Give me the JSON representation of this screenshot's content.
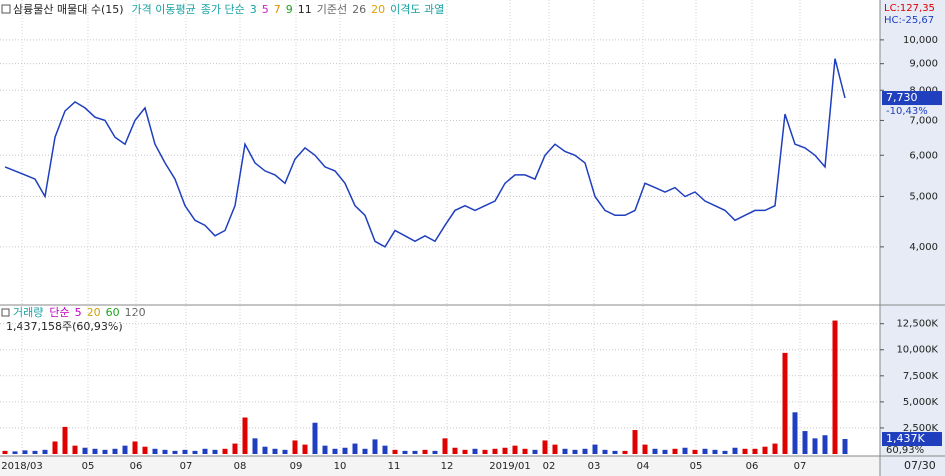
{
  "chart_data": [
    {
      "type": "line",
      "title": "삼륭물산 매물대 수(15)",
      "legend": [
        {
          "text": "가격 이동평균",
          "color": "#17a2a2"
        },
        {
          "text": "종가 단순",
          "color": "#17a2a2"
        },
        {
          "text": "3",
          "color": "#17a2a2"
        },
        {
          "text": "5",
          "color": "#d020d0"
        },
        {
          "text": "7",
          "color": "#e09000"
        },
        {
          "text": "9",
          "color": "#20a020"
        },
        {
          "text": "11",
          "color": "#222222"
        },
        {
          "text": "기준선",
          "color": "#666666"
        },
        {
          "text": "26",
          "color": "#666666"
        },
        {
          "text": "20",
          "color": "#e0a000"
        },
        {
          "text": "이격도 과열",
          "color": "#17a2a2"
        }
      ],
      "annotations": {
        "lc": "LC:127,35",
        "hc": "HC:-25,67",
        "change": "-10,43%"
      },
      "current": {
        "value": 7730,
        "label": "7,730"
      },
      "log_scale": true,
      "grid": true,
      "color": "#1f3fbf",
      "x": [
        0,
        1,
        2,
        3,
        4,
        5,
        6,
        7,
        8,
        9,
        10,
        11,
        12,
        13,
        14,
        15,
        16,
        17,
        18,
        19,
        20,
        21,
        22,
        23,
        24,
        25,
        26,
        27,
        28,
        29,
        30,
        31,
        32,
        33,
        34,
        35,
        36,
        37,
        38,
        39,
        40,
        41,
        42,
        43,
        44,
        45,
        46,
        47,
        48,
        49,
        50,
        51,
        52,
        53,
        54,
        55,
        56,
        57,
        58,
        59,
        60,
        61,
        62,
        63,
        64,
        65,
        66,
        67,
        68,
        69,
        70,
        71,
        72,
        73,
        74,
        75,
        76,
        77,
        78,
        79,
        80,
        81,
        82,
        83,
        84
      ],
      "values": [
        5700,
        5600,
        5500,
        5400,
        5000,
        6500,
        7300,
        7600,
        7400,
        7100,
        7000,
        6500,
        6300,
        7000,
        7400,
        6300,
        5800,
        5400,
        4800,
        4500,
        4400,
        4200,
        4300,
        4800,
        6300,
        5800,
        5600,
        5500,
        5300,
        5900,
        6200,
        6000,
        5700,
        5600,
        5300,
        4800,
        4600,
        4100,
        4000,
        4300,
        4200,
        4100,
        4200,
        4100,
        4400,
        4700,
        4800,
        4700,
        4800,
        4900,
        5300,
        5500,
        5500,
        5400,
        6000,
        6300,
        6100,
        6000,
        5800,
        5000,
        4700,
        4600,
        4600,
        4700,
        5300,
        5200,
        5100,
        5200,
        5000,
        5100,
        4900,
        4800,
        4700,
        4500,
        4600,
        4700,
        4700,
        4800,
        7200,
        6300,
        6200,
        6000,
        5700,
        9200,
        7730
      ],
      "xlim": [
        -0.5,
        87.5
      ],
      "ylim": [
        3120,
        11930
      ],
      "yticks": [
        {
          "value": 4000,
          "label": "4,000"
        },
        {
          "value": 5000,
          "label": "5,000"
        },
        {
          "value": 6000,
          "label": "6,000"
        },
        {
          "value": 7000,
          "label": "7,000"
        },
        {
          "value": 8000,
          "label": "8,000"
        },
        {
          "value": 9000,
          "label": "9,000"
        },
        {
          "value": 10000,
          "label": "10,000"
        }
      ]
    },
    {
      "type": "bar",
      "title": "거래량",
      "legend": [
        {
          "text": "단순",
          "color": "#c000c0"
        },
        {
          "text": "5",
          "color": "#c000c0"
        },
        {
          "text": "20",
          "color": "#d0a000"
        },
        {
          "text": "60",
          "color": "#20a020"
        },
        {
          "text": "120",
          "color": "#666666"
        }
      ],
      "shares": "1,437,158주(60,93%)",
      "ratio": "60,93%",
      "end_date": "07/30",
      "current": {
        "value": 1437,
        "label": "1,437K"
      },
      "grid": true,
      "up_color": "#e00000",
      "down_color": "#1f3fbf",
      "values": [
        300,
        250,
        350,
        300,
        400,
        1200,
        2600,
        800,
        600,
        500,
        400,
        500,
        800,
        1200,
        700,
        500,
        400,
        300,
        400,
        300,
        500,
        400,
        500,
        1000,
        3500,
        1500,
        700,
        500,
        400,
        1300,
        900,
        3000,
        800,
        500,
        600,
        1000,
        500,
        1400,
        800,
        400,
        300,
        300,
        400,
        300,
        1500,
        600,
        400,
        500,
        400,
        500,
        600,
        800,
        500,
        400,
        1300,
        900,
        500,
        400,
        500,
        900,
        400,
        300,
        300,
        2300,
        900,
        500,
        400,
        500,
        600,
        400,
        500,
        400,
        300,
        600,
        500,
        500,
        700,
        1000,
        9700,
        4000,
        2200,
        1500,
        1800,
        12800,
        1437
      ],
      "xlim": [
        -0.5,
        87.5
      ],
      "xticks": [
        {
          "value": 1.7,
          "label": "2018/03"
        },
        {
          "value": 8.3,
          "label": "05"
        },
        {
          "value": 13.1,
          "label": "06"
        },
        {
          "value": 18.1,
          "label": "07"
        },
        {
          "value": 23.5,
          "label": "08"
        },
        {
          "value": 29.1,
          "label": "09"
        },
        {
          "value": 33.5,
          "label": "10"
        },
        {
          "value": 38.9,
          "label": "11"
        },
        {
          "value": 44.2,
          "label": "12"
        },
        {
          "value": 50.5,
          "label": "2019/01"
        },
        {
          "value": 54.4,
          "label": "02"
        },
        {
          "value": 58.9,
          "label": "03"
        },
        {
          "value": 63.8,
          "label": "04"
        },
        {
          "value": 69.1,
          "label": "05"
        },
        {
          "value": 74.7,
          "label": "06"
        },
        {
          "value": 79.5,
          "label": "07"
        }
      ],
      "ylim": [
        0,
        14100
      ],
      "yticks": [
        {
          "value": 2500,
          "label": "2,500K"
        },
        {
          "value": 5000,
          "label": "5,000K"
        },
        {
          "value": 7500,
          "label": "7,500K"
        },
        {
          "value": 10000,
          "label": "10,000K"
        },
        {
          "value": 12500,
          "label": "12,500K"
        }
      ]
    }
  ]
}
